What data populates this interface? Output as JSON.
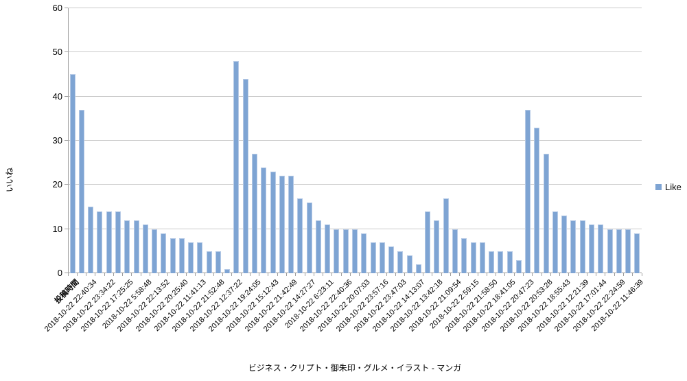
{
  "chart_data": {
    "type": "bar",
    "title": "",
    "y_axis_title": "いいね",
    "x_axis_title": "ビジネス・クリプト・御朱印・グルメ・イラスト - マンガ",
    "legend": {
      "position": "right",
      "entries": [
        "Like"
      ]
    },
    "y_axis": {
      "min": 0,
      "max": 60,
      "tick_step": 10,
      "ticks": [
        0,
        10,
        20,
        30,
        40,
        50,
        60
      ]
    },
    "grid": "horizontal",
    "bar_color": "#7EA4D3",
    "bar_border_color": "#B6CAE6",
    "gridline_color": "#C9C9C9",
    "axis_color": "#9E9E9E",
    "x_label_every_n_bars": 2,
    "x_label_header": "投稿時間",
    "x_tick_labels": [
      "投稿時間",
      "2018-10-22 22:40:34",
      "2018-10-22 23:34:22",
      "2018-10-22 17:25:25",
      "2018-10-22 5:58:48",
      "2018-10-22 22:13:52",
      "2018-10-22 20:25:40",
      "2018-10-22 11:41:13",
      "2018-10-22 21:52:48",
      "2018-10-22 12:37:22",
      "2018-10-22 19:24:05",
      "2018-10-22 15:12:43",
      "2018-10-22 21:42:49",
      "2018-10-22 14:27:27",
      "2018-10-22 6:23:11",
      "2018-10-22 22:40:36",
      "2018-10-22 20:07:03",
      "2018-10-22 23:57:16",
      "2018-10-22 23:47:03",
      "2018-10-22 14:13:07",
      "2018-10-22 13:42:18",
      "2018-10-22 21:09:54",
      "2018-10-22 2:59:15",
      "2018-10-22 21:58:50",
      "2018-10-22 18:41:05",
      "2018-10-22 20:47:23",
      "2018-10-22 20:53:28",
      "2018-10-22 18:55:43",
      "2018-10-22 12:21:39",
      "2018-10-22 17:01:44",
      "2018-10-22 22:24:59",
      "2018-10-22 11:46:39"
    ],
    "series": [
      {
        "name": "Like",
        "values": [
          45,
          37,
          15,
          14,
          14,
          14,
          12,
          12,
          11,
          10,
          9,
          8,
          8,
          7,
          7,
          5,
          5,
          1,
          48,
          44,
          27,
          24,
          23,
          22,
          22,
          17,
          16,
          12,
          11,
          10,
          10,
          10,
          9,
          7,
          7,
          6,
          5,
          4,
          2,
          14,
          12,
          17,
          10,
          8,
          7,
          7,
          5,
          5,
          5,
          3,
          37,
          33,
          27,
          14,
          13,
          12,
          12,
          11,
          11,
          10,
          10,
          10,
          9
        ]
      }
    ]
  }
}
